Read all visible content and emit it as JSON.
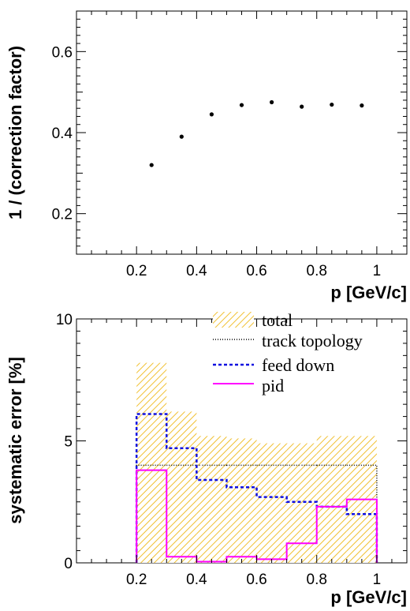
{
  "chart_data": [
    {
      "type": "scatter",
      "xlabel": "p [GeV/c]",
      "ylabel": "1 / (correction factor)",
      "xlim": [
        0,
        1.1
      ],
      "ylim": [
        0.1,
        0.7
      ],
      "xticks": [
        0.2,
        0.4,
        0.6,
        0.8,
        1
      ],
      "xtick_labels": [
        "0.2",
        "0.4",
        "0.6",
        "0.8",
        "1"
      ],
      "yticks": [
        0.2,
        0.4,
        0.6
      ],
      "ytick_labels": [
        "0.2",
        "0.4",
        "0.6"
      ],
      "series": [
        {
          "x": [
            0.25,
            0.35,
            0.45,
            0.55,
            0.65,
            0.75,
            0.85,
            0.95
          ],
          "y": [
            0.32,
            0.39,
            0.445,
            0.468,
            0.475,
            0.464,
            0.469,
            0.467
          ]
        }
      ],
      "grid": false
    },
    {
      "type": "histogram",
      "xlabel": "p [GeV/c]",
      "ylabel": "systematic error [%]",
      "xlim": [
        0,
        1.1
      ],
      "ylim": [
        0,
        10
      ],
      "xticks": [
        0.2,
        0.4,
        0.6,
        0.8,
        1
      ],
      "xtick_labels": [
        "0.2",
        "0.4",
        "0.6",
        "0.8",
        "1"
      ],
      "yticks": [
        0,
        5,
        10
      ],
      "ytick_labels": [
        "0",
        "5",
        "10"
      ],
      "bin_edges": [
        0.2,
        0.3,
        0.4,
        0.5,
        0.6,
        0.7,
        0.8,
        0.9,
        1.0
      ],
      "series": [
        {
          "name": "total",
          "style": "hatched",
          "color": "#f0c030",
          "values": [
            8.2,
            6.2,
            5.2,
            5.1,
            4.9,
            4.9,
            5.2,
            5.2
          ]
        },
        {
          "name": "track topology",
          "style": "dotted",
          "color": "#000000",
          "values": [
            4.0,
            4.0,
            4.0,
            4.0,
            4.0,
            4.0,
            4.0,
            4.0
          ]
        },
        {
          "name": "feed down",
          "style": "dashed",
          "color": "#1010e0",
          "values": [
            6.1,
            4.7,
            3.4,
            3.1,
            2.7,
            2.5,
            2.3,
            2.0
          ]
        },
        {
          "name": "pid",
          "style": "solid",
          "color": "#ff00ff",
          "values": [
            3.8,
            0.25,
            0.05,
            0.25,
            0.15,
            0.8,
            2.3,
            2.6
          ]
        }
      ],
      "legend_position": "top-right",
      "grid": false
    }
  ]
}
